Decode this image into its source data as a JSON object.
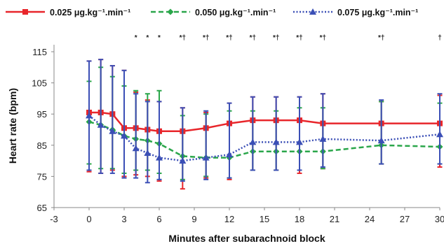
{
  "chart_data": {
    "type": "line",
    "xlabel": "Minutes after subarachnoid block",
    "ylabel": "Heart rate (bpm)",
    "xlim": [
      -3,
      30
    ],
    "ylim": [
      65,
      115
    ],
    "x_ticks": [
      "-3",
      "0",
      "3",
      "6",
      "9",
      "12",
      "15",
      "18",
      "21",
      "24",
      "27",
      "30"
    ],
    "y_ticks": [
      "65",
      "75",
      "85",
      "95",
      "105",
      "115"
    ],
    "legend_position": "top",
    "grid": false,
    "series": [
      {
        "name": "0.025 μg.kg⁻¹.min⁻¹",
        "color": "#e8262b",
        "marker": "square",
        "line": "solid",
        "points": [
          {
            "x": 0,
            "y": 95.5,
            "lo": 76.5,
            "hi": 112
          },
          {
            "x": 1,
            "y": 95.5,
            "lo": 76,
            "hi": 112.5
          },
          {
            "x": 2,
            "y": 95,
            "lo": 77,
            "hi": 110.5
          },
          {
            "x": 3,
            "y": 90.5,
            "lo": 75,
            "hi": 109
          },
          {
            "x": 4,
            "y": 90.5,
            "lo": 75.5,
            "hi": 102
          },
          {
            "x": 5,
            "y": 90,
            "lo": 75,
            "hi": 99.5
          },
          {
            "x": 6,
            "y": 89.5,
            "lo": 73.5,
            "hi": 99
          },
          {
            "x": 8,
            "y": 89.5,
            "lo": 71,
            "hi": 97
          },
          {
            "x": 10,
            "y": 90.5,
            "lo": 74.5,
            "hi": 95.5
          },
          {
            "x": 12,
            "y": 92,
            "lo": 74,
            "hi": 98.5
          },
          {
            "x": 14,
            "y": 93,
            "lo": 77,
            "hi": 100.5
          },
          {
            "x": 16,
            "y": 93,
            "lo": 77,
            "hi": 100.5
          },
          {
            "x": 18,
            "y": 93,
            "lo": 76,
            "hi": 100.5
          },
          {
            "x": 20,
            "y": 92,
            "lo": 77.5,
            "hi": 101.5
          },
          {
            "x": 25,
            "y": 92,
            "lo": 79,
            "hi": 99
          },
          {
            "x": 30,
            "y": 92,
            "lo": 78,
            "hi": 101
          }
        ]
      },
      {
        "name": "0.050 μg.kg⁻¹.min⁻¹",
        "color": "#2aa64a",
        "marker": "diamond",
        "line": "dashed",
        "points": [
          {
            "x": 0,
            "y": 92.5,
            "lo": 79,
            "hi": 105.5
          },
          {
            "x": 1,
            "y": 91.5,
            "lo": 77.5,
            "hi": 110
          },
          {
            "x": 2,
            "y": 90,
            "lo": 77.5,
            "hi": 107
          },
          {
            "x": 3,
            "y": 88,
            "lo": 76,
            "hi": 104
          },
          {
            "x": 4,
            "y": 87,
            "lo": 77,
            "hi": 102.5
          },
          {
            "x": 5,
            "y": 86.5,
            "lo": 77,
            "hi": 101.5
          },
          {
            "x": 6,
            "y": 85.5,
            "lo": 76,
            "hi": 102.5
          },
          {
            "x": 8,
            "y": 81.5,
            "lo": 74,
            "hi": 94.5
          },
          {
            "x": 10,
            "y": 81,
            "lo": 75,
            "hi": 95
          },
          {
            "x": 12,
            "y": 81,
            "lo": 74.5,
            "hi": 96
          },
          {
            "x": 14,
            "y": 83,
            "lo": 77,
            "hi": 96
          },
          {
            "x": 16,
            "y": 83,
            "lo": 77,
            "hi": 96
          },
          {
            "x": 18,
            "y": 83,
            "lo": 77,
            "hi": 97
          },
          {
            "x": 20,
            "y": 83,
            "lo": 77.5,
            "hi": 97
          },
          {
            "x": 25,
            "y": 85,
            "lo": 79,
            "hi": 99
          },
          {
            "x": 30,
            "y": 84.5,
            "lo": 79,
            "hi": 98.5
          }
        ]
      },
      {
        "name": "0.075 μg.kg⁻¹.min⁻¹",
        "color": "#3b4fb6",
        "marker": "triangle",
        "line": "dotted",
        "points": [
          {
            "x": 0,
            "y": 94.5,
            "lo": 77,
            "hi": 112
          },
          {
            "x": 1,
            "y": 91.5,
            "lo": 76,
            "hi": 112.5
          },
          {
            "x": 2,
            "y": 89.5,
            "lo": 76,
            "hi": 110.5
          },
          {
            "x": 3,
            "y": 88,
            "lo": 74.5,
            "hi": 109
          },
          {
            "x": 4,
            "y": 84,
            "lo": 74.5,
            "hi": 101.5
          },
          {
            "x": 5,
            "y": 82.5,
            "lo": 73,
            "hi": 99
          },
          {
            "x": 6,
            "y": 81,
            "lo": 74,
            "hi": 99
          },
          {
            "x": 8,
            "y": 80,
            "lo": 73.5,
            "hi": 97
          },
          {
            "x": 10,
            "y": 81,
            "lo": 74,
            "hi": 96
          },
          {
            "x": 12,
            "y": 82,
            "lo": 74.5,
            "hi": 98.5
          },
          {
            "x": 14,
            "y": 86,
            "lo": 77,
            "hi": 100.5
          },
          {
            "x": 16,
            "y": 86,
            "lo": 77,
            "hi": 100.5
          },
          {
            "x": 18,
            "y": 86,
            "lo": 77,
            "hi": 100.5
          },
          {
            "x": 20,
            "y": 87,
            "lo": 78,
            "hi": 101.5
          },
          {
            "x": 25,
            "y": 86.5,
            "lo": 79,
            "hi": 99.5
          },
          {
            "x": 30,
            "y": 88.5,
            "lo": 79,
            "hi": 101.5
          }
        ]
      }
    ],
    "significance_marks": [
      {
        "x": 4,
        "text": "*"
      },
      {
        "x": 5,
        "text": "*"
      },
      {
        "x": 6,
        "text": "*"
      },
      {
        "x": 8,
        "text": "*†"
      },
      {
        "x": 10,
        "text": "*†"
      },
      {
        "x": 12,
        "text": "*†"
      },
      {
        "x": 14,
        "text": "*†"
      },
      {
        "x": 16,
        "text": "*†"
      },
      {
        "x": 18,
        "text": "*†"
      },
      {
        "x": 20,
        "text": "*†"
      },
      {
        "x": 25,
        "text": "*†"
      },
      {
        "x": 30,
        "text": "†"
      }
    ]
  }
}
